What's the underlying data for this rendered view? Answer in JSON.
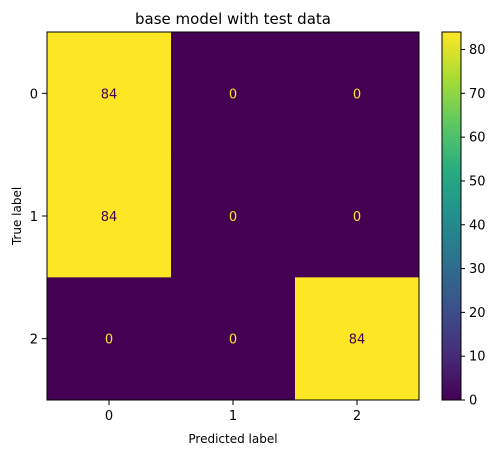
{
  "chart_data": {
    "type": "heatmap",
    "title": "base model with test data",
    "xlabel": "Predicted label",
    "ylabel": "True label",
    "x_categories": [
      "0",
      "1",
      "2"
    ],
    "y_categories": [
      "0",
      "1",
      "2"
    ],
    "values": [
      [
        84,
        0,
        0
      ],
      [
        84,
        0,
        0
      ],
      [
        0,
        0,
        84
      ]
    ],
    "colormap": "viridis",
    "colorbar": {
      "range": [
        0,
        84
      ],
      "ticks": [
        0,
        10,
        20,
        30,
        40,
        50,
        60,
        70,
        80
      ],
      "tick_labels": [
        "0",
        "10",
        "20",
        "30",
        "40",
        "50",
        "60",
        "70",
        "80"
      ]
    },
    "colors": {
      "high": "#fde725",
      "low": "#440154",
      "text_on_high": "#440154",
      "text_on_low": "#fde725"
    },
    "grid": false
  }
}
